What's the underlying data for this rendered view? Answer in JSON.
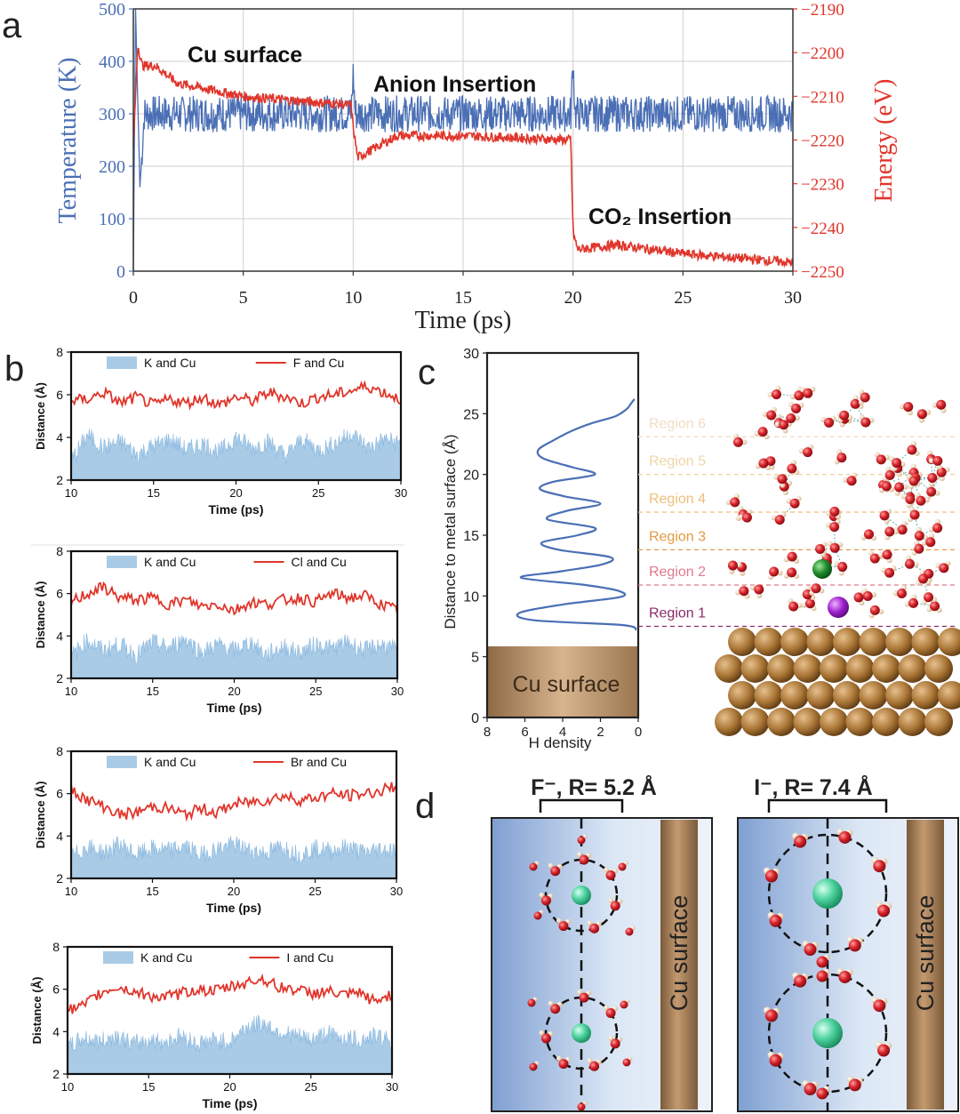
{
  "panels": {
    "a": "a",
    "b": "b",
    "c": "c",
    "d": "d"
  },
  "chart_data": [
    {
      "id": "a",
      "type": "line",
      "xlabel": "Time (ps)",
      "xlim": [
        0,
        30
      ],
      "xticks": [
        0,
        5,
        10,
        15,
        20,
        25,
        30
      ],
      "grid": true,
      "left_axis": {
        "label": "Temperature (K)",
        "ylim": [
          0,
          500
        ],
        "ticks": [
          0,
          100,
          200,
          300,
          400,
          500
        ],
        "color": "#4a6fb5"
      },
      "right_axis": {
        "label": "Energy (eV)",
        "ylim": [
          -2250,
          -2190
        ],
        "ticks": [
          -2190,
          -2200,
          -2210,
          -2220,
          -2230,
          -2240,
          -2250
        ],
        "color": "#e0352b"
      },
      "annotations": [
        "Cu surface",
        "Anion Insertion",
        "CO₂ Insertion"
      ],
      "series": [
        {
          "axis": "left",
          "color": "#4a6fb5",
          "x": [
            0,
            0.1,
            0.3,
            0.5,
            1,
            5,
            9.9,
            10,
            10.1,
            15,
            19.9,
            20,
            20.1,
            25,
            30
          ],
          "values": [
            0,
            500,
            160,
            300,
            300,
            300,
            300,
            375,
            300,
            300,
            300,
            400,
            300,
            300,
            300
          ]
        },
        {
          "axis": "right",
          "color": "#e0352b",
          "x": [
            0,
            0.2,
            0.4,
            1,
            2,
            5,
            9.9,
            10,
            10.2,
            12,
            15,
            19.9,
            20,
            20.2,
            22,
            25,
            30
          ],
          "values": [
            -2222,
            -2198,
            -2203,
            -2203,
            -2207,
            -2210,
            -2212,
            -2217,
            -2224,
            -2219,
            -2219,
            -2220,
            -2241,
            -2245,
            -2244,
            -2246,
            -2248
          ]
        }
      ]
    },
    {
      "id": "b1",
      "type": "line",
      "xlabel": "Time (ps)",
      "ylabel": "Distance (Å)",
      "xlim": [
        10,
        30
      ],
      "ylim": [
        2,
        8
      ],
      "xticks": [
        10,
        15,
        20,
        25,
        30
      ],
      "yticks": [
        2,
        4,
        6,
        8
      ],
      "series": [
        {
          "name": "K and Cu",
          "kind": "area",
          "color": "#a9cbe6",
          "values": [
            2.9,
            4.1,
            3.5,
            3.8,
            3.2,
            3.6,
            3.9,
            3.4,
            3.7,
            3.3,
            4.0,
            3.5,
            3.8,
            3.1,
            3.9,
            3.4,
            3.7,
            4.2,
            3.5,
            3.9,
            3.7
          ]
        },
        {
          "name": "F and Cu",
          "kind": "line",
          "color": "#e0352b",
          "values": [
            5.7,
            5.8,
            6.1,
            5.6,
            5.9,
            5.5,
            5.8,
            5.6,
            5.9,
            5.5,
            5.9,
            5.7,
            6.1,
            5.9,
            5.6,
            5.9,
            6.0,
            6.2,
            6.4,
            6.1,
            5.8
          ]
        }
      ]
    },
    {
      "id": "b2",
      "type": "line",
      "xlabel": "Time (ps)",
      "ylabel": "Distance (Å)",
      "xlim": [
        10,
        30
      ],
      "ylim": [
        2,
        8
      ],
      "xticks": [
        10,
        15,
        20,
        25,
        30
      ],
      "yticks": [
        2,
        4,
        6,
        8
      ],
      "series": [
        {
          "name": "K and Cu",
          "kind": "area",
          "color": "#a9cbe6",
          "values": [
            3.0,
            3.8,
            3.3,
            3.6,
            3.1,
            3.7,
            3.4,
            3.9,
            3.2,
            3.6,
            3.3,
            3.7,
            3.1,
            3.5,
            3.2,
            3.6,
            3.4,
            3.7,
            3.3,
            3.6,
            3.3
          ]
        },
        {
          "name": "Cl and Cu",
          "kind": "line",
          "color": "#e0352b",
          "values": [
            5.6,
            6.0,
            6.3,
            5.8,
            5.7,
            5.8,
            5.5,
            5.7,
            5.4,
            5.5,
            5.2,
            5.6,
            5.5,
            5.7,
            5.8,
            5.6,
            6.0,
            5.8,
            5.9,
            5.5,
            5.2
          ]
        }
      ]
    },
    {
      "id": "b3",
      "type": "line",
      "xlabel": "Time (ps)",
      "ylabel": "Distance (Å)",
      "xlim": [
        10,
        30
      ],
      "ylim": [
        2,
        8
      ],
      "xticks": [
        10,
        15,
        20,
        25,
        30
      ],
      "yticks": [
        2,
        4,
        6,
        8
      ],
      "series": [
        {
          "name": "K and Cu",
          "kind": "area",
          "color": "#a9cbe6",
          "values": [
            3.0,
            3.5,
            3.2,
            3.6,
            3.1,
            3.4,
            3.3,
            3.5,
            3.1,
            3.4,
            3.6,
            3.3,
            3.2,
            3.5,
            3.1,
            3.4,
            3.3,
            3.5,
            3.2,
            3.4,
            3.3
          ]
        },
        {
          "name": "Br and Cu",
          "kind": "line",
          "color": "#e0352b",
          "values": [
            6.2,
            5.7,
            5.4,
            5.0,
            5.1,
            5.4,
            5.3,
            5.0,
            5.3,
            5.1,
            5.5,
            5.6,
            5.7,
            5.9,
            5.7,
            5.8,
            6.0,
            5.9,
            6.0,
            6.1,
            6.4
          ]
        }
      ]
    },
    {
      "id": "b4",
      "type": "line",
      "xlabel": "Time (ps)",
      "ylabel": "Distance (Å)",
      "xlim": [
        10,
        30
      ],
      "ylim": [
        2,
        8
      ],
      "xticks": [
        10,
        15,
        20,
        25,
        30
      ],
      "yticks": [
        2,
        4,
        6,
        8
      ],
      "series": [
        {
          "name": "K and Cu",
          "kind": "area",
          "color": "#a9cbe6",
          "values": [
            3.2,
            3.7,
            3.5,
            3.8,
            3.4,
            3.6,
            3.5,
            3.8,
            3.4,
            3.6,
            3.5,
            4.2,
            4.4,
            4.0,
            3.8,
            3.6,
            3.9,
            3.7,
            3.6,
            3.8,
            3.6
          ]
        },
        {
          "name": "I and Cu",
          "kind": "line",
          "color": "#e0352b",
          "values": [
            5.0,
            5.2,
            5.8,
            6.1,
            5.9,
            5.7,
            5.6,
            5.8,
            6.0,
            5.9,
            6.1,
            6.3,
            6.5,
            6.1,
            6.0,
            5.8,
            5.9,
            5.7,
            5.8,
            5.4,
            5.8
          ]
        }
      ]
    },
    {
      "id": "c",
      "type": "line",
      "xlabel": "H density",
      "ylabel": "Distance to metal surface (Å)",
      "xlim": [
        8,
        0
      ],
      "ylim": [
        0,
        30
      ],
      "xticks": [
        8,
        6,
        4,
        2,
        0
      ],
      "yticks": [
        0,
        5,
        10,
        15,
        20,
        25,
        30
      ],
      "x_reversed": true,
      "surface_label": "Cu surface",
      "surface_top": 5.7,
      "series": [
        {
          "name": "H density",
          "color": "#4a6fb5",
          "y": [
            7.2,
            7.6,
            8.0,
            8.6,
            9.3,
            9.9,
            10.4,
            10.9,
            11.5,
            12.0,
            12.6,
            13.2,
            13.8,
            14.4,
            15.0,
            15.6,
            16.3,
            17.0,
            17.6,
            18.2,
            18.8,
            19.4,
            20.0,
            20.6,
            21.3,
            22.0,
            22.8,
            23.6,
            24.2,
            24.8,
            25.4,
            25.8,
            26.2
          ],
          "values": [
            0.1,
            0.8,
            5.5,
            6.3,
            4.0,
            1.0,
            1.0,
            2.8,
            6.2,
            4.2,
            1.9,
            1.5,
            4.2,
            5.1,
            3.2,
            2.3,
            4.8,
            3.8,
            2.0,
            3.9,
            5.2,
            4.5,
            2.3,
            3.5,
            5.0,
            5.3,
            4.5,
            3.5,
            2.5,
            1.2,
            0.6,
            0.4,
            0.2
          ]
        }
      ],
      "regions": [
        {
          "label": "Region 1",
          "y": 7.5,
          "color": "#8b2a6a"
        },
        {
          "label": "Region 2",
          "y": 10.9,
          "color": "#e07a8a"
        },
        {
          "label": "Region 3",
          "y": 13.8,
          "color": "#e39a45"
        },
        {
          "label": "Region 4",
          "y": 16.9,
          "color": "#eec07a"
        },
        {
          "label": "Region 5",
          "y": 20.0,
          "color": "#f1d7a8"
        },
        {
          "label": "Region 6",
          "y": 23.1,
          "color": "#f3dcc4"
        }
      ]
    }
  ],
  "panel_d": {
    "left_title": "F⁻, R= 5.2 Å",
    "right_title": "I⁻, R= 7.4 Å",
    "surface_label": "Cu surface"
  }
}
